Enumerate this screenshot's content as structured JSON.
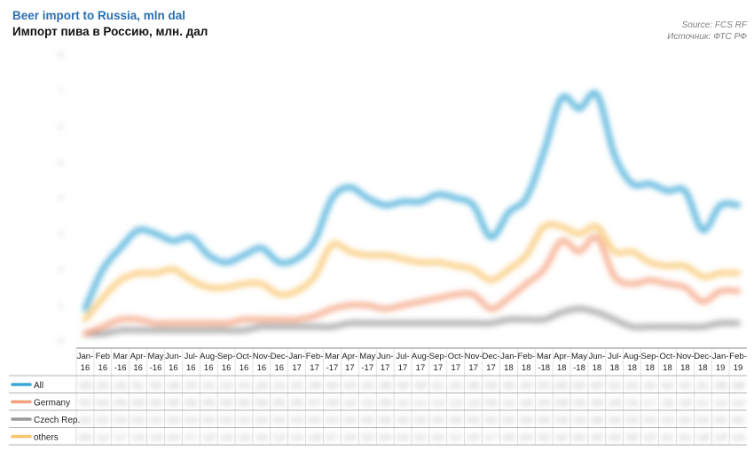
{
  "header": {
    "title_en": "Beer import to Russia, mln dal",
    "title_ru": "Импорт пива в Россию, млн. дал",
    "source_en": "Source: FCS RF",
    "source_ru": "Источник: ФТС РФ"
  },
  "chart_data": {
    "type": "line",
    "title": "Beer import to Russia, mln dal",
    "subtitle": "Импорт пива в Россию, млн. дал",
    "categories": [
      "Jan-16",
      "Feb-16",
      "Mar-16",
      "Apr-16",
      "May-16",
      "Jun-16",
      "Jul-16",
      "Aug-16",
      "Sep-16",
      "Oct-16",
      "Nov-16",
      "Dec-16",
      "Jan-17",
      "Feb-17",
      "Mar-17",
      "Apr-17",
      "May-17",
      "Jun-17",
      "Jul-17",
      "Aug-17",
      "Sep-17",
      "Oct-17",
      "Nov-17",
      "Dec-17",
      "Jan-18",
      "Feb-18",
      "Mar-18",
      "Apr-18",
      "May-18",
      "Jun-18",
      "Jul-18",
      "Aug-18",
      "Sep-18",
      "Oct-18",
      "Nov-18",
      "Dec-18",
      "Jan-19",
      "Feb-19"
    ],
    "category_labels": [
      [
        "Jan-",
        "16"
      ],
      [
        "Feb",
        "16"
      ],
      [
        "Mar",
        "-16"
      ],
      [
        "Apr-",
        "16"
      ],
      [
        "May",
        "-16"
      ],
      [
        "Jun-",
        "16"
      ],
      [
        "Jul-",
        "16"
      ],
      [
        "Aug-",
        "16"
      ],
      [
        "Sep-",
        "16"
      ],
      [
        "Oct-",
        "16"
      ],
      [
        "Nov-",
        "16"
      ],
      [
        "Dec-",
        "16"
      ],
      [
        "Jan-",
        "17"
      ],
      [
        "Feb-",
        "17"
      ],
      [
        "Mar",
        "-17"
      ],
      [
        "Apr-",
        "17"
      ],
      [
        "May",
        "-17"
      ],
      [
        "Jun-",
        "17"
      ],
      [
        "Jul-",
        "17"
      ],
      [
        "Aug-",
        "17"
      ],
      [
        "Sep-",
        "17"
      ],
      [
        "Oct-",
        "17"
      ],
      [
        "Nov-",
        "17"
      ],
      [
        "Dec-",
        "17"
      ],
      [
        "Jan-",
        "18"
      ],
      [
        "Feb-",
        "18"
      ],
      [
        "Mar",
        "-18"
      ],
      [
        "Apr-",
        "18"
      ],
      [
        "May",
        "-18"
      ],
      [
        "Jun-",
        "18"
      ],
      [
        "Jul-",
        "18"
      ],
      [
        "Aug-",
        "18"
      ],
      [
        "Sep-",
        "18"
      ],
      [
        "Oct-",
        "18"
      ],
      [
        "Nov-",
        "18"
      ],
      [
        "Dec-",
        "18"
      ],
      [
        "Jan-",
        "19"
      ],
      [
        "Feb-",
        "19"
      ]
    ],
    "ylim": [
      0,
      8
    ],
    "series": [
      {
        "name": "All",
        "color": "#3aa7d6",
        "values": [
          0.9,
          2.0,
          2.6,
          3.1,
          3.0,
          2.8,
          2.9,
          2.4,
          2.2,
          2.4,
          2.6,
          2.2,
          2.3,
          2.8,
          4.0,
          4.3,
          4.0,
          3.8,
          3.9,
          3.9,
          4.1,
          4.0,
          3.8,
          2.9,
          3.6,
          4.0,
          5.3,
          6.8,
          6.5,
          6.9,
          5.2,
          4.4,
          4.4,
          4.2,
          4.2,
          3.1,
          3.8,
          3.8
        ]
      },
      {
        "name": "Germany",
        "color": "#f4a07c",
        "values": [
          0.2,
          0.4,
          0.6,
          0.6,
          0.5,
          0.5,
          0.5,
          0.5,
          0.5,
          0.6,
          0.6,
          0.6,
          0.6,
          0.7,
          0.9,
          1.0,
          1.0,
          0.9,
          1.0,
          1.1,
          1.2,
          1.3,
          1.3,
          0.9,
          1.2,
          1.6,
          2.0,
          2.8,
          2.5,
          2.9,
          1.8,
          1.6,
          1.7,
          1.6,
          1.5,
          1.1,
          1.4,
          1.4
        ]
      },
      {
        "name": "Czech Rep.",
        "color": "#9a9a9a",
        "values": [
          0.2,
          0.2,
          0.3,
          0.3,
          0.3,
          0.3,
          0.3,
          0.3,
          0.3,
          0.3,
          0.4,
          0.4,
          0.4,
          0.4,
          0.4,
          0.5,
          0.5,
          0.5,
          0.5,
          0.5,
          0.5,
          0.5,
          0.5,
          0.5,
          0.6,
          0.6,
          0.6,
          0.8,
          0.9,
          0.8,
          0.6,
          0.4,
          0.4,
          0.4,
          0.4,
          0.4,
          0.5,
          0.5
        ]
      },
      {
        "name": "others",
        "color": "#f8c46a",
        "values": [
          0.6,
          1.2,
          1.7,
          1.9,
          1.9,
          2.0,
          1.7,
          1.5,
          1.5,
          1.6,
          1.6,
          1.3,
          1.4,
          1.8,
          2.7,
          2.5,
          2.4,
          2.4,
          2.3,
          2.2,
          2.2,
          2.1,
          2.0,
          1.7,
          2.0,
          2.4,
          3.2,
          3.2,
          3.0,
          3.2,
          2.5,
          2.5,
          2.2,
          2.1,
          2.1,
          1.8,
          1.9,
          1.9
        ]
      }
    ],
    "grid": false,
    "legend_position": "bottom-left, attached to the data table"
  }
}
